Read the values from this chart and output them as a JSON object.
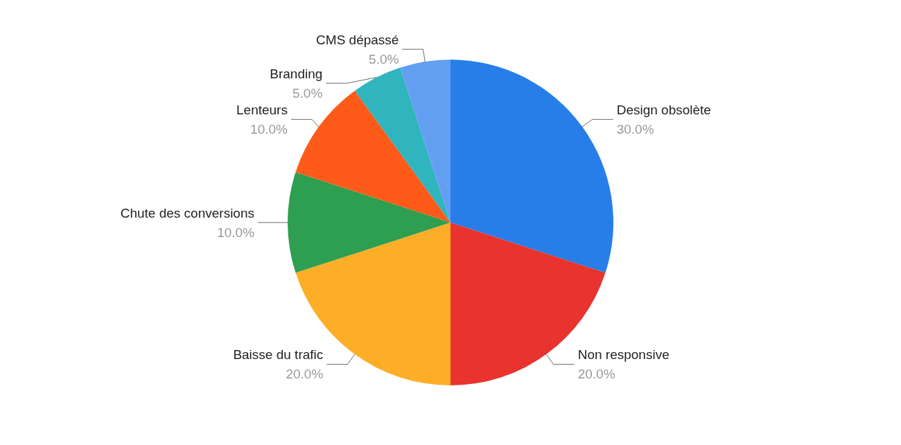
{
  "chart_data": {
    "type": "pie",
    "categories": [
      "Design obsolète",
      "Non responsive",
      "Baisse du trafic",
      "Chute des conversions",
      "Lenteurs",
      "Branding",
      "CMS dépassé"
    ],
    "values": [
      30,
      20,
      20,
      10,
      10,
      5,
      5
    ],
    "colors": [
      "#277ee9",
      "#e8332f",
      "#fdae28",
      "#2e9e50",
      "#fe5b1a",
      "#30b4bd",
      "#639ff1"
    ],
    "value_labels": [
      "30.0%",
      "20.0%",
      "20.0%",
      "10.0%",
      "10.0%",
      "5.0%",
      "5.0%"
    ]
  }
}
